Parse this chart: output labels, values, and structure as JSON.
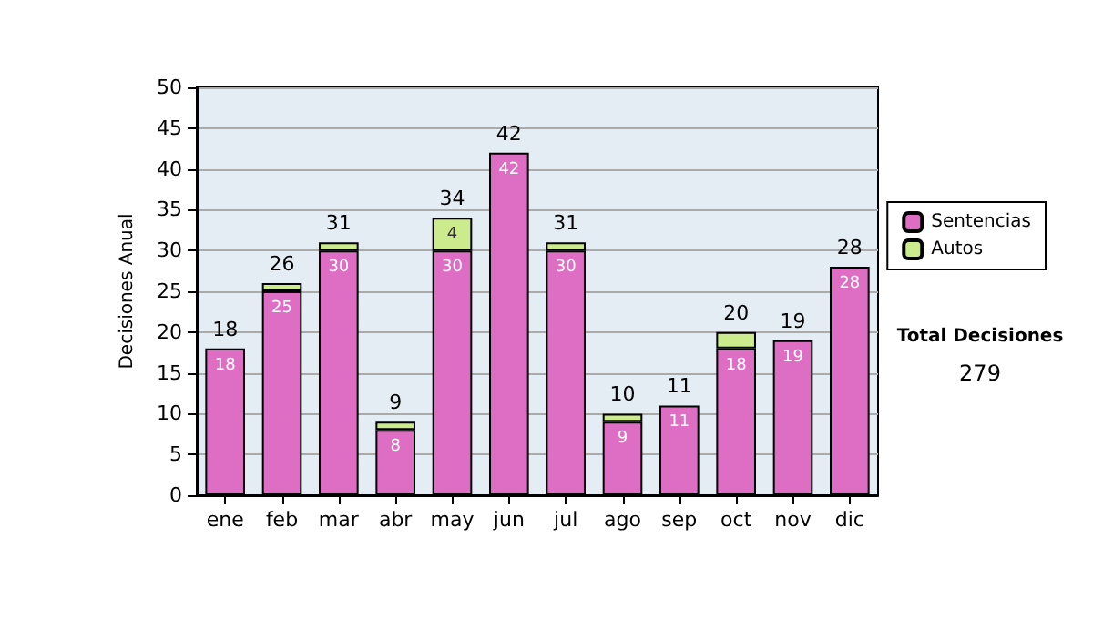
{
  "chart_data": {
    "type": "bar",
    "stacked": true,
    "ylabel": "Decisiones Anual",
    "categories": [
      "ene",
      "feb",
      "mar",
      "abr",
      "may",
      "jun",
      "jul",
      "ago",
      "sep",
      "oct",
      "nov",
      "dic"
    ],
    "series": [
      {
        "name": "Sentencias",
        "color": "#dd6ec4",
        "values": [
          18,
          25,
          30,
          8,
          30,
          42,
          30,
          9,
          11,
          18,
          19,
          28
        ],
        "value_labels": [
          "18",
          "25",
          "30",
          "8",
          "30",
          "42",
          "30",
          "9",
          "11",
          "18",
          "19",
          "28"
        ]
      },
      {
        "name": "Autos",
        "color": "#cceb8c",
        "values": [
          0,
          1,
          1,
          1,
          4,
          0,
          1,
          1,
          0,
          2,
          0,
          0
        ],
        "value_labels": [
          null,
          null,
          null,
          null,
          "4",
          null,
          null,
          null,
          null,
          null,
          null,
          null
        ]
      }
    ],
    "totals": [
      "18",
      "26",
      "31",
      "9",
      "34",
      "42",
      "31",
      "10",
      "11",
      "20",
      "19",
      "28"
    ],
    "ylim": [
      0,
      50
    ],
    "yticks": [
      0,
      5,
      10,
      15,
      20,
      25,
      30,
      35,
      40,
      45,
      50
    ],
    "grid": "y",
    "legend": "right",
    "annotations": [
      "Total Decisiones",
      "279"
    ]
  }
}
